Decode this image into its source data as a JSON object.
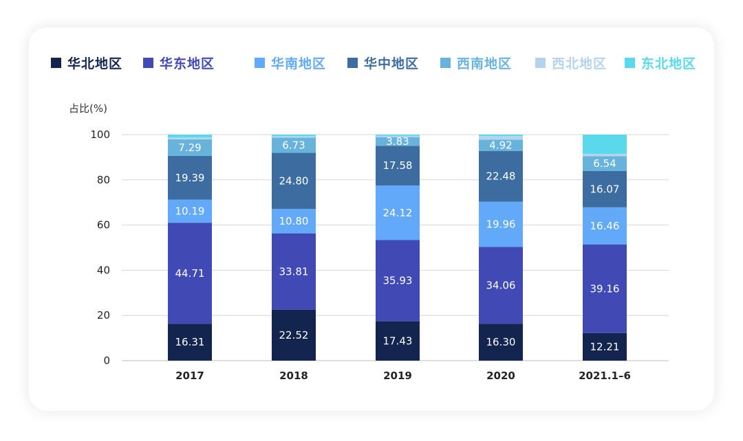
{
  "chart_data": {
    "type": "bar",
    "stacked": true,
    "ylabel": "占比(%)",
    "ylim": [
      0,
      100
    ],
    "yticks": [
      0,
      20,
      40,
      60,
      80,
      100
    ],
    "grid": true,
    "legend_position": "top",
    "categories": [
      "2017",
      "2018",
      "2019",
      "2020",
      "2021.1–6"
    ],
    "series": [
      {
        "name": "华北地区",
        "color": "#13244f",
        "values": [
          16.31,
          22.52,
          17.43,
          16.3,
          12.21
        ]
      },
      {
        "name": "华东地区",
        "color": "#4149b5",
        "values": [
          44.71,
          33.81,
          35.93,
          34.06,
          39.16
        ]
      },
      {
        "name": "华南地区",
        "color": "#62aaf9",
        "values": [
          10.19,
          10.8,
          24.12,
          19.96,
          16.46
        ]
      },
      {
        "name": "华中地区",
        "color": "#3d6da0",
        "values": [
          19.39,
          24.8,
          17.58,
          22.48,
          16.07
        ]
      },
      {
        "name": "西南地区",
        "color": "#68b3dc",
        "values": [
          7.29,
          6.73,
          3.83,
          4.92,
          6.54
        ]
      },
      {
        "name": "西北地区",
        "color": "#b6d3ed",
        "values": [
          0.81,
          0.64,
          0.56,
          1.61,
          1.06
        ]
      },
      {
        "name": "东北地区",
        "color": "#5ad9ec",
        "values": [
          1.3,
          1.5,
          0.55,
          0.67,
          8.5
        ]
      }
    ],
    "labeled_series": [
      "华北地区",
      "华东地区",
      "华南地区",
      "华中地区",
      "西南地区"
    ]
  }
}
